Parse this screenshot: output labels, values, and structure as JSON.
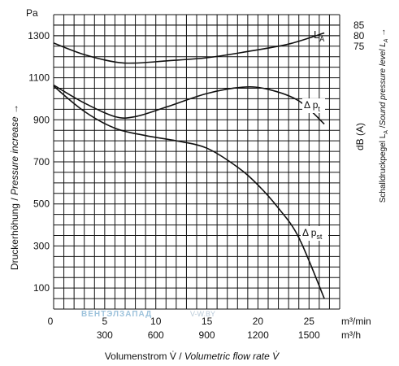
{
  "chart_data": {
    "type": "line",
    "left_axis": {
      "unit": "Pa",
      "ticks": [
        100,
        300,
        500,
        700,
        900,
        1100,
        1300
      ],
      "range": [
        0,
        1400
      ],
      "label_de": "Druckerhöhung",
      "label_sep": " / ",
      "label_en": "Pressure increase →"
    },
    "right_axis": {
      "ticks": [
        85,
        80,
        75
      ],
      "unit_label": "dB (A)",
      "label": "Schalldruckpegel L",
      "label_sub": "A",
      "label_sep": " /",
      "label_en": "Sound pressure level L",
      "label_en_sub": "A",
      "label_arrow": " →"
    },
    "x_axis_m3min": {
      "unit": "m³/min",
      "ticks": [
        0,
        5,
        10,
        15,
        20,
        25
      ],
      "range": [
        0,
        28
      ]
    },
    "x_axis_m3h": {
      "unit": "m³/h",
      "ticks": [
        300,
        600,
        900,
        1200,
        1500
      ]
    },
    "xlabel_de": "Volumenstrom V̇",
    "xlabel_sep": " / ",
    "xlabel_en": "Volumetric flow rate V̇",
    "grid": true,
    "series": [
      {
        "name": "L",
        "name_sub": "A",
        "points": [
          [
            0,
            1265
          ],
          [
            3,
            1210
          ],
          [
            6,
            1175
          ],
          [
            8,
            1170
          ],
          [
            11,
            1180
          ],
          [
            15,
            1195
          ],
          [
            19,
            1225
          ],
          [
            23,
            1260
          ],
          [
            26.5,
            1313
          ]
        ]
      },
      {
        "name": "Δ p",
        "name_sub": "t",
        "points": [
          [
            0,
            1065
          ],
          [
            3,
            980
          ],
          [
            6,
            915
          ],
          [
            8,
            915
          ],
          [
            11,
            960
          ],
          [
            15,
            1025
          ],
          [
            18.5,
            1055
          ],
          [
            21,
            1045
          ],
          [
            24,
            990
          ],
          [
            26.5,
            880
          ]
        ]
      },
      {
        "name": "Δ p",
        "name_sub": "st",
        "points": [
          [
            0,
            1060
          ],
          [
            3,
            940
          ],
          [
            6,
            860
          ],
          [
            9,
            825
          ],
          [
            12,
            800
          ],
          [
            15,
            765
          ],
          [
            18,
            675
          ],
          [
            20,
            590
          ],
          [
            22,
            480
          ],
          [
            24,
            340
          ],
          [
            26.5,
            50
          ]
        ]
      }
    ]
  },
  "watermark": {
    "part1": "ВЕНТЭЛ",
    "part2": "ЗАПАД",
    "part3": "V-W.BY"
  }
}
